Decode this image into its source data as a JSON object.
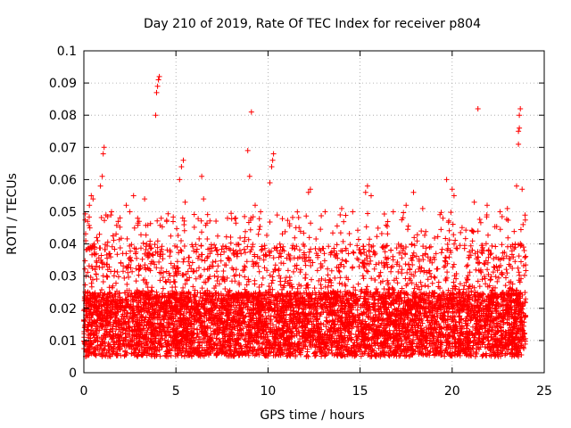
{
  "chart_data": {
    "type": "scatter",
    "title": "Day 210 of 2019, Rate Of TEC Index for receiver p804",
    "xlabel": "GPS time / hours",
    "ylabel": "ROTI / TECUs",
    "xlim": [
      0,
      25
    ],
    "ylim": [
      0,
      0.1
    ],
    "xticks": [
      0,
      5,
      10,
      15,
      20,
      25
    ],
    "xtick_labels": [
      "0",
      "5",
      "10",
      "15",
      "20",
      "25"
    ],
    "yticks": [
      0,
      0.01,
      0.02,
      0.03,
      0.04,
      0.05,
      0.06,
      0.07,
      0.08,
      0.09,
      0.1
    ],
    "ytick_labels": [
      "0",
      "0.01",
      "0.02",
      "0.03",
      "0.04",
      "0.05",
      "0.06",
      "0.07",
      "0.08",
      "0.09",
      "0.1"
    ],
    "grid": true,
    "marker": "+",
    "color": "#ff0000",
    "bulk_range": [
      0.005,
      0.025
    ],
    "x_span": [
      0,
      24
    ],
    "points": [
      [
        0.1,
        0.041
      ],
      [
        0.2,
        0.047
      ],
      [
        0.3,
        0.052
      ],
      [
        0.4,
        0.055
      ],
      [
        0.5,
        0.054
      ],
      [
        0.9,
        0.058
      ],
      [
        1.0,
        0.061
      ],
      [
        1.05,
        0.068
      ],
      [
        1.1,
        0.07
      ],
      [
        1.2,
        0.049
      ],
      [
        2.3,
        0.052
      ],
      [
        2.5,
        0.05
      ],
      [
        2.7,
        0.055
      ],
      [
        3.0,
        0.047
      ],
      [
        3.3,
        0.054
      ],
      [
        3.9,
        0.08
      ],
      [
        3.95,
        0.087
      ],
      [
        4.0,
        0.089
      ],
      [
        4.05,
        0.091
      ],
      [
        4.1,
        0.092
      ],
      [
        4.2,
        0.048
      ],
      [
        4.5,
        0.047
      ],
      [
        5.2,
        0.06
      ],
      [
        5.3,
        0.064
      ],
      [
        5.4,
        0.066
      ],
      [
        5.5,
        0.053
      ],
      [
        6.4,
        0.061
      ],
      [
        6.5,
        0.054
      ],
      [
        7.8,
        0.048
      ],
      [
        8.9,
        0.069
      ],
      [
        9.0,
        0.061
      ],
      [
        9.1,
        0.081
      ],
      [
        9.3,
        0.052
      ],
      [
        9.6,
        0.05
      ],
      [
        10.1,
        0.059
      ],
      [
        10.2,
        0.064
      ],
      [
        10.25,
        0.066
      ],
      [
        10.3,
        0.068
      ],
      [
        10.5,
        0.049
      ],
      [
        12.2,
        0.056
      ],
      [
        12.3,
        0.057
      ],
      [
        13.1,
        0.05
      ],
      [
        14.0,
        0.051
      ],
      [
        14.6,
        0.05
      ],
      [
        15.3,
        0.056
      ],
      [
        15.4,
        0.058
      ],
      [
        15.6,
        0.055
      ],
      [
        16.8,
        0.05
      ],
      [
        17.5,
        0.052
      ],
      [
        17.9,
        0.056
      ],
      [
        18.4,
        0.051
      ],
      [
        19.5,
        0.048
      ],
      [
        19.7,
        0.06
      ],
      [
        20.0,
        0.057
      ],
      [
        20.1,
        0.055
      ],
      [
        21.2,
        0.053
      ],
      [
        21.4,
        0.082
      ],
      [
        21.9,
        0.052
      ],
      [
        22.6,
        0.05
      ],
      [
        23.0,
        0.051
      ],
      [
        23.5,
        0.058
      ],
      [
        23.6,
        0.071
      ],
      [
        23.6,
        0.075
      ],
      [
        23.65,
        0.076
      ],
      [
        23.65,
        0.08
      ],
      [
        23.7,
        0.082
      ],
      [
        23.8,
        0.057
      ],
      [
        23.85,
        0.046
      ]
    ]
  }
}
